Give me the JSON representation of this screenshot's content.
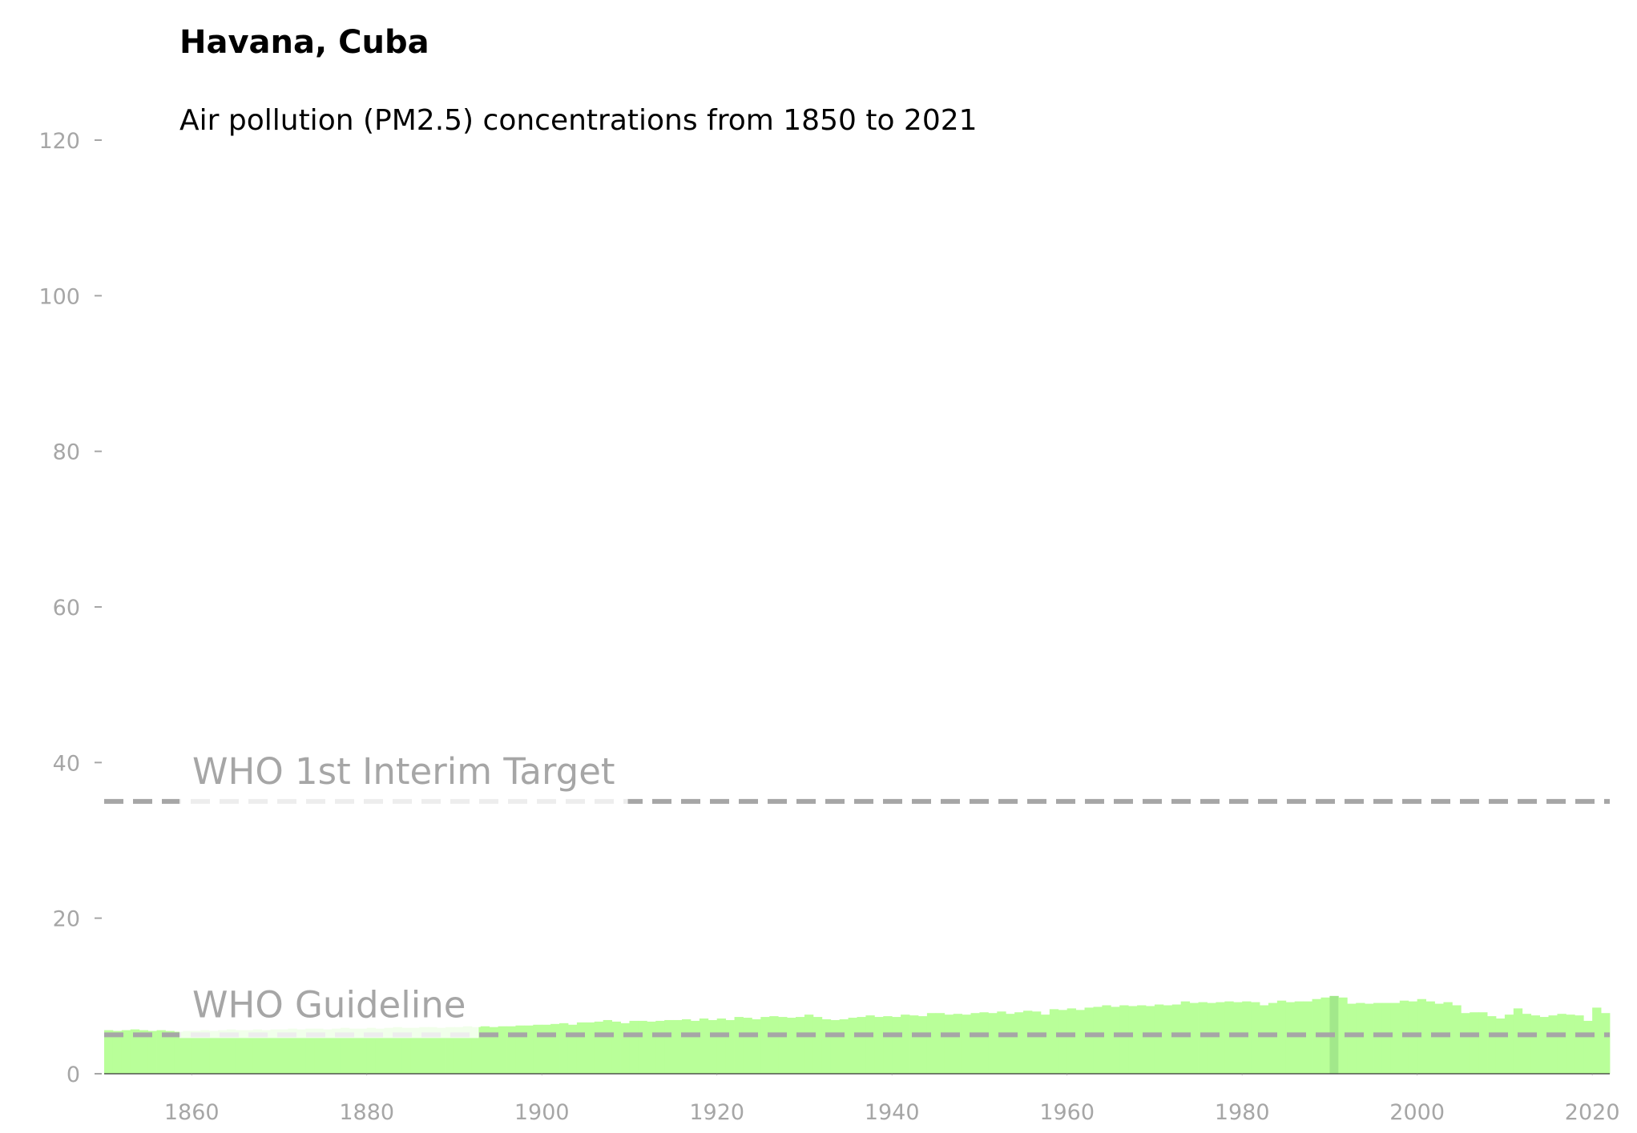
{
  "chart_data": {
    "type": "bar",
    "title": "Havana, Cuba",
    "subtitle": "Air pollution (PM2.5) concentrations from 1850 to 2021",
    "x": [
      1850,
      1851,
      1852,
      1853,
      1854,
      1855,
      1856,
      1857,
      1858,
      1859,
      1860,
      1861,
      1862,
      1863,
      1864,
      1865,
      1866,
      1867,
      1868,
      1869,
      1870,
      1871,
      1872,
      1873,
      1874,
      1875,
      1876,
      1877,
      1878,
      1879,
      1880,
      1881,
      1882,
      1883,
      1884,
      1885,
      1886,
      1887,
      1888,
      1889,
      1890,
      1891,
      1892,
      1893,
      1894,
      1895,
      1896,
      1897,
      1898,
      1899,
      1900,
      1901,
      1902,
      1903,
      1904,
      1905,
      1906,
      1907,
      1908,
      1909,
      1910,
      1911,
      1912,
      1913,
      1914,
      1915,
      1916,
      1917,
      1918,
      1919,
      1920,
      1921,
      1922,
      1923,
      1924,
      1925,
      1926,
      1927,
      1928,
      1929,
      1930,
      1931,
      1932,
      1933,
      1934,
      1935,
      1936,
      1937,
      1938,
      1939,
      1940,
      1941,
      1942,
      1943,
      1944,
      1945,
      1946,
      1947,
      1948,
      1949,
      1950,
      1951,
      1952,
      1953,
      1954,
      1955,
      1956,
      1957,
      1958,
      1959,
      1960,
      1961,
      1962,
      1963,
      1964,
      1965,
      1966,
      1967,
      1968,
      1969,
      1970,
      1971,
      1972,
      1973,
      1974,
      1975,
      1976,
      1977,
      1978,
      1979,
      1980,
      1981,
      1982,
      1983,
      1984,
      1985,
      1986,
      1987,
      1988,
      1989,
      1990,
      1991,
      1992,
      1993,
      1994,
      1995,
      1996,
      1997,
      1998,
      1999,
      2000,
      2001,
      2002,
      2003,
      2004,
      2005,
      2006,
      2007,
      2008,
      2009,
      2010,
      2011,
      2012,
      2013,
      2014,
      2015,
      2016,
      2017,
      2018,
      2019,
      2020,
      2021
    ],
    "values": [
      5.6,
      5.5,
      5.6,
      5.7,
      5.6,
      5.5,
      5.6,
      5.5,
      5.4,
      5.5,
      5.5,
      5.6,
      5.5,
      5.6,
      5.7,
      5.6,
      5.6,
      5.7,
      5.6,
      5.7,
      5.7,
      5.8,
      5.7,
      5.8,
      5.8,
      5.7,
      5.8,
      5.9,
      5.8,
      5.8,
      5.9,
      5.8,
      5.9,
      6.0,
      5.9,
      5.9,
      6.0,
      6.0,
      5.9,
      6.0,
      6.0,
      6.1,
      6.0,
      6.1,
      6.0,
      6.1,
      6.1,
      6.2,
      6.2,
      6.3,
      6.3,
      6.4,
      6.5,
      6.3,
      6.6,
      6.6,
      6.7,
      6.9,
      6.7,
      6.5,
      6.8,
      6.8,
      6.7,
      6.8,
      6.9,
      6.9,
      7.0,
      6.8,
      7.1,
      6.9,
      7.1,
      6.9,
      7.3,
      7.2,
      7.0,
      7.3,
      7.4,
      7.3,
      7.2,
      7.3,
      7.6,
      7.3,
      7.0,
      6.9,
      7.0,
      7.2,
      7.3,
      7.5,
      7.3,
      7.4,
      7.3,
      7.6,
      7.5,
      7.4,
      7.8,
      7.8,
      7.6,
      7.7,
      7.6,
      7.8,
      7.9,
      7.8,
      8.0,
      7.7,
      7.9,
      8.1,
      8.0,
      7.6,
      8.3,
      8.2,
      8.4,
      8.2,
      8.5,
      8.6,
      8.8,
      8.6,
      8.8,
      8.7,
      8.8,
      8.7,
      8.9,
      8.8,
      8.9,
      9.3,
      9.1,
      9.2,
      9.1,
      9.2,
      9.3,
      9.2,
      9.3,
      9.2,
      8.8,
      9.1,
      9.4,
      9.2,
      9.3,
      9.3,
      9.6,
      9.8,
      10.0,
      9.8,
      9.0,
      9.1,
      9.0,
      9.1,
      9.1,
      9.1,
      9.4,
      9.3,
      9.6,
      9.3,
      9.0,
      9.2,
      8.8,
      7.8,
      7.9,
      7.9,
      7.4,
      7.1,
      7.6,
      8.4,
      7.7,
      7.5,
      7.3,
      7.5,
      7.7,
      7.6,
      7.5,
      6.8,
      8.5,
      7.8
    ],
    "color": "#b9ff99",
    "highlight": {
      "x": 1990,
      "color": "#a2e88b"
    },
    "xlim": [
      1850,
      2022
    ],
    "xticks": [
      1860,
      1880,
      1900,
      1920,
      1940,
      1960,
      1980,
      2000,
      2020
    ],
    "ylim": [
      0,
      120
    ],
    "yticks": [
      0,
      20,
      40,
      60,
      80,
      100,
      120
    ],
    "reference_lines": [
      {
        "value": 5,
        "label": "WHO Guideline"
      },
      {
        "value": 35,
        "label": "WHO 1st Interim Target"
      }
    ],
    "reference_color": "#a6a6a6"
  }
}
